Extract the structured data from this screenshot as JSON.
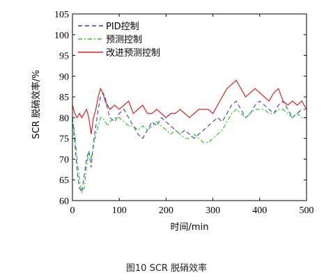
{
  "chart_data": {
    "type": "line",
    "title": "",
    "xlabel": "时间/min",
    "ylabel": "SCR 脱硝效率/%",
    "xlim": [
      0,
      500
    ],
    "ylim": [
      60,
      105
    ],
    "xticks": [
      0,
      100,
      200,
      300,
      400,
      500
    ],
    "yticks": [
      60,
      65,
      70,
      75,
      80,
      85,
      90,
      95,
      100,
      105
    ],
    "legend_position": "top-left",
    "grid": false,
    "series": [
      {
        "name": "PID控制",
        "color": "#3b3bb0",
        "style": "dashed",
        "x": [
          0,
          5,
          10,
          15,
          20,
          25,
          30,
          35,
          40,
          45,
          50,
          55,
          60,
          65,
          70,
          75,
          80,
          90,
          100,
          110,
          120,
          130,
          140,
          150,
          160,
          170,
          180,
          190,
          200,
          210,
          220,
          230,
          240,
          250,
          260,
          270,
          280,
          290,
          300,
          310,
          320,
          330,
          340,
          350,
          360,
          370,
          380,
          390,
          400,
          410,
          420,
          430,
          440,
          450,
          460,
          470,
          480,
          490,
          500
        ],
        "values": [
          80,
          74,
          67,
          63,
          62,
          66,
          70,
          72,
          68,
          74,
          78,
          82,
          85,
          86,
          85,
          82,
          80,
          79,
          81,
          82,
          80,
          78,
          76,
          75,
          77,
          79,
          78,
          80,
          79,
          78,
          77,
          76,
          77,
          76,
          75,
          76,
          77,
          78,
          79,
          80,
          79,
          81,
          83,
          84,
          82,
          80,
          81,
          83,
          84,
          83,
          82,
          81,
          83,
          84,
          82,
          80,
          81,
          82,
          82
        ]
      },
      {
        "name": "预测控制",
        "color": "#22cc22",
        "style": "dashdot",
        "x": [
          0,
          5,
          10,
          15,
          20,
          25,
          30,
          35,
          40,
          45,
          50,
          55,
          60,
          65,
          70,
          75,
          80,
          90,
          100,
          110,
          120,
          130,
          140,
          150,
          160,
          170,
          180,
          190,
          200,
          210,
          220,
          230,
          240,
          250,
          260,
          270,
          280,
          290,
          300,
          310,
          320,
          330,
          340,
          350,
          360,
          370,
          380,
          390,
          400,
          410,
          420,
          430,
          440,
          450,
          460,
          470,
          480,
          490,
          500
        ],
        "values": [
          80,
          76,
          70,
          65,
          62,
          63,
          68,
          72,
          70,
          73,
          76,
          78,
          80,
          80,
          79,
          78,
          79,
          80,
          80,
          79,
          78,
          78,
          77,
          78,
          77,
          78,
          79,
          78,
          77,
          76,
          77,
          76,
          75,
          75,
          76,
          75,
          74,
          74,
          75,
          76,
          77,
          79,
          81,
          82,
          81,
          80,
          81,
          82,
          82,
          82,
          81,
          81,
          82,
          82,
          81,
          80,
          81,
          80,
          80
        ]
      },
      {
        "name": "改进预测控制",
        "color": "#d42020",
        "style": "solid",
        "x": [
          0,
          5,
          10,
          15,
          20,
          25,
          30,
          35,
          40,
          45,
          50,
          55,
          60,
          65,
          70,
          75,
          80,
          90,
          100,
          110,
          120,
          130,
          140,
          150,
          160,
          170,
          180,
          190,
          200,
          210,
          220,
          230,
          240,
          250,
          260,
          270,
          280,
          290,
          300,
          310,
          320,
          330,
          340,
          350,
          360,
          370,
          380,
          390,
          400,
          410,
          420,
          430,
          440,
          450,
          460,
          470,
          480,
          490,
          500
        ],
        "values": [
          83,
          81,
          80,
          81,
          80,
          81,
          82,
          80,
          76,
          80,
          82,
          85,
          87,
          86,
          84,
          83,
          82,
          83,
          82,
          83,
          84,
          81,
          82,
          83,
          81,
          81,
          82,
          81,
          80,
          81,
          81,
          82,
          81,
          80,
          81,
          82,
          82,
          82,
          81,
          83,
          85,
          87,
          88,
          89,
          87,
          85,
          86,
          87,
          86,
          85,
          84,
          86,
          87,
          84,
          83,
          84,
          83,
          84,
          82
        ]
      }
    ]
  },
  "caption": "图10 SCR 脱硝效率"
}
